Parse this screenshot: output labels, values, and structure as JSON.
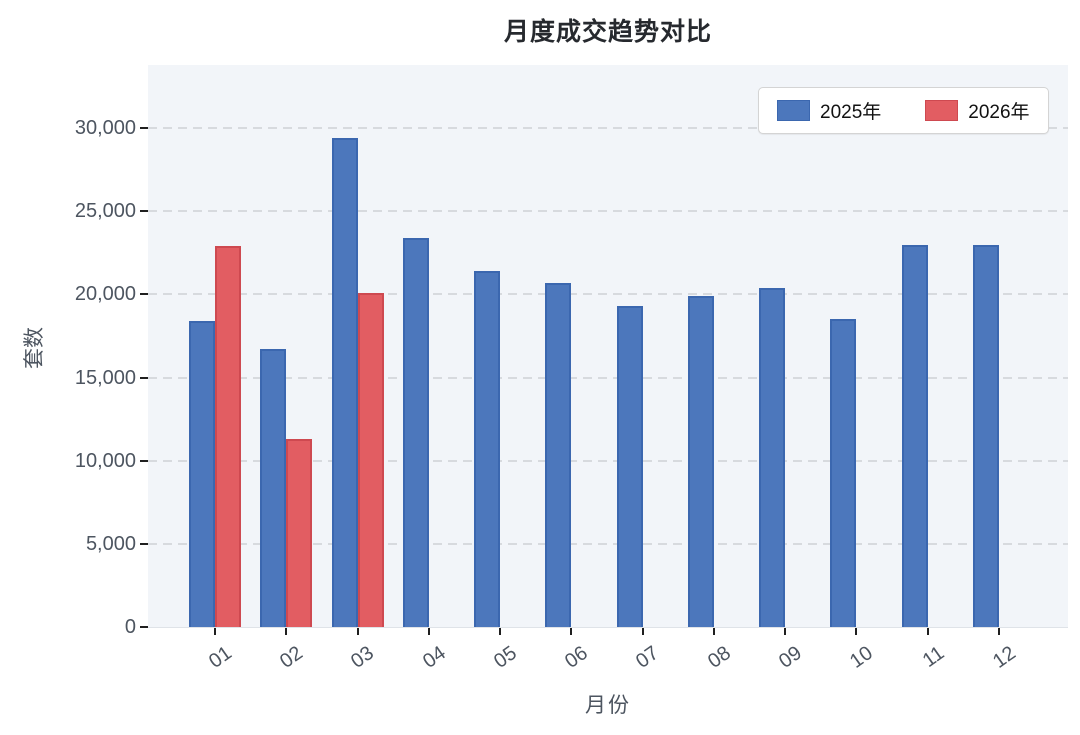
{
  "title": "月度成交趋势对比",
  "chart_data": {
    "type": "bar",
    "title": "月度成交趋势对比",
    "xlabel": "月份",
    "ylabel": "套数",
    "categories": [
      "01",
      "02",
      "03",
      "04",
      "05",
      "06",
      "07",
      "08",
      "09",
      "10",
      "11",
      "12"
    ],
    "series": [
      {
        "name": "2025年",
        "color": "#4c77bc",
        "border_color": "#3b67af",
        "values": [
          18400,
          16700,
          29400,
          23400,
          21400,
          20700,
          19300,
          19900,
          20400,
          18500,
          23000,
          23000
        ]
      },
      {
        "name": "2026年",
        "color": "#e25d62",
        "border_color": "#ce4950",
        "values": [
          22900,
          11300,
          20100,
          null,
          null,
          null,
          null,
          null,
          null,
          null,
          null,
          null
        ]
      }
    ],
    "yticks": [
      0,
      5000,
      10000,
      15000,
      20000,
      25000,
      30000
    ],
    "ytick_labels": [
      "0",
      "5,000",
      "10,000",
      "15,000",
      "20,000",
      "25,000",
      "30,000"
    ],
    "ylim": [
      0,
      33800
    ],
    "grid": true,
    "legend_position": "top-right",
    "plot_background": "#f2f5f9",
    "gridline_color": "#d7dade"
  }
}
